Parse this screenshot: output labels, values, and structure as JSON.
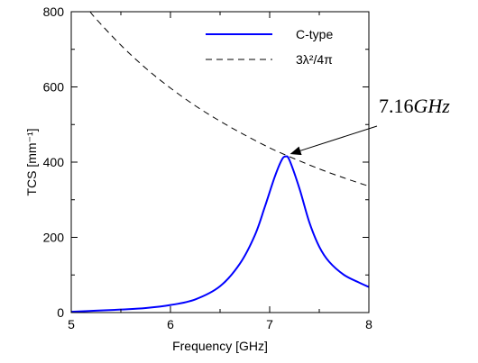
{
  "chart_data": {
    "type": "line",
    "xlabel": "Frequency [GHz]",
    "ylabel": "TCS [mm⁻¹]",
    "xlim": [
      5,
      8
    ],
    "ylim": [
      0,
      800
    ],
    "xticks": [
      "5",
      "6",
      "7",
      "8"
    ],
    "yticks": [
      "0",
      "200",
      "400",
      "600",
      "800"
    ],
    "grid": false,
    "legend_position": "top-right",
    "series": [
      {
        "name": "C-type",
        "style": "solid",
        "color": "#0000ff",
        "x": [
          5.0,
          5.25,
          5.5,
          5.75,
          6.0,
          6.25,
          6.5,
          6.7,
          6.85,
          6.95,
          7.05,
          7.12,
          7.16,
          7.2,
          7.3,
          7.4,
          7.5,
          7.6,
          7.75,
          7.9,
          8.0
        ],
        "y": [
          2,
          5,
          8,
          12,
          20,
          35,
          70,
          130,
          205,
          280,
          360,
          405,
          415,
          405,
          330,
          240,
          175,
          135,
          100,
          80,
          68
        ]
      },
      {
        "name": "3λ²/4π",
        "style": "dashed",
        "color": "#000000",
        "x": [
          5.19,
          5.25,
          5.5,
          5.75,
          6.0,
          6.25,
          6.5,
          6.75,
          7.0,
          7.16,
          7.25,
          7.5,
          7.75,
          8.0
        ],
        "y": [
          800,
          781,
          711,
          650,
          597,
          550,
          509,
          472,
          438,
          419,
          409,
          382,
          358,
          336
        ]
      }
    ],
    "annotation": {
      "text": "7.16",
      "unit": "GHz",
      "point": [
        7.16,
        415
      ]
    }
  },
  "colors": {
    "c_type": "#0000ff",
    "dashed": "#000000",
    "axis": "#000000"
  }
}
